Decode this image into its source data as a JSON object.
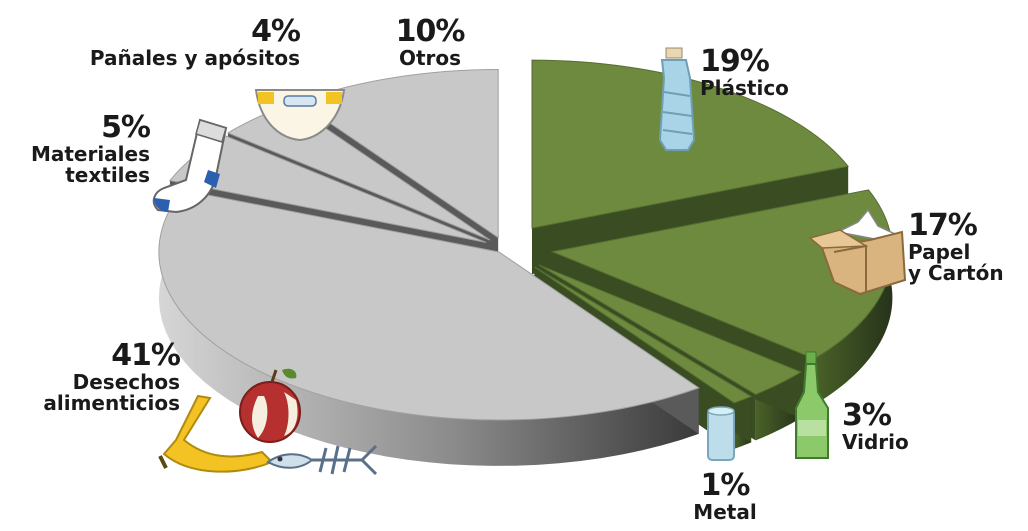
{
  "chart_data": {
    "type": "pie",
    "title": "",
    "style": "exploded-3d",
    "slices": [
      {
        "label": "Plástico",
        "label_lines": [
          "Plástico"
        ],
        "value": 19,
        "value_label": "19%",
        "color": "#6d8a3e",
        "icon": "plastic-bottle-icon"
      },
      {
        "label": "Papel y Cartón",
        "label_lines": [
          "Papel",
          "y Cartón"
        ],
        "value": 17,
        "value_label": "17%",
        "color": "#6d8a3e",
        "icon": "cardboard-box-icon"
      },
      {
        "label": "Vidrio",
        "label_lines": [
          "Vidrio"
        ],
        "value": 3,
        "value_label": "3%",
        "color": "#6d8a3e",
        "icon": "glass-bottle-icon"
      },
      {
        "label": "Metal",
        "label_lines": [
          "Metal"
        ],
        "value": 1,
        "value_label": "1%",
        "color": "#6d8a3e",
        "icon": "metal-can-icon"
      },
      {
        "label": "Desechos alimenticios",
        "label_lines": [
          "Desechos",
          "alimenticios"
        ],
        "value": 41,
        "value_label": "41%",
        "color": "#c8c8c8",
        "icon": "food-waste-icon"
      },
      {
        "label": "Materiales textiles",
        "label_lines": [
          "Materiales",
          "textiles"
        ],
        "value": 5,
        "value_label": "5%",
        "color": "#c8c8c8",
        "icon": "sock-icon"
      },
      {
        "label": "Pañales y apósitos",
        "label_lines": [
          "Pañales y apósitos"
        ],
        "value": 4,
        "value_label": "4%",
        "color": "#c8c8c8",
        "icon": "diaper-icon"
      },
      {
        "label": "Otros",
        "label_lines": [
          "Otros"
        ],
        "value": 10,
        "value_label": "10%",
        "color": "#c8c8c8",
        "icon": ""
      }
    ]
  }
}
